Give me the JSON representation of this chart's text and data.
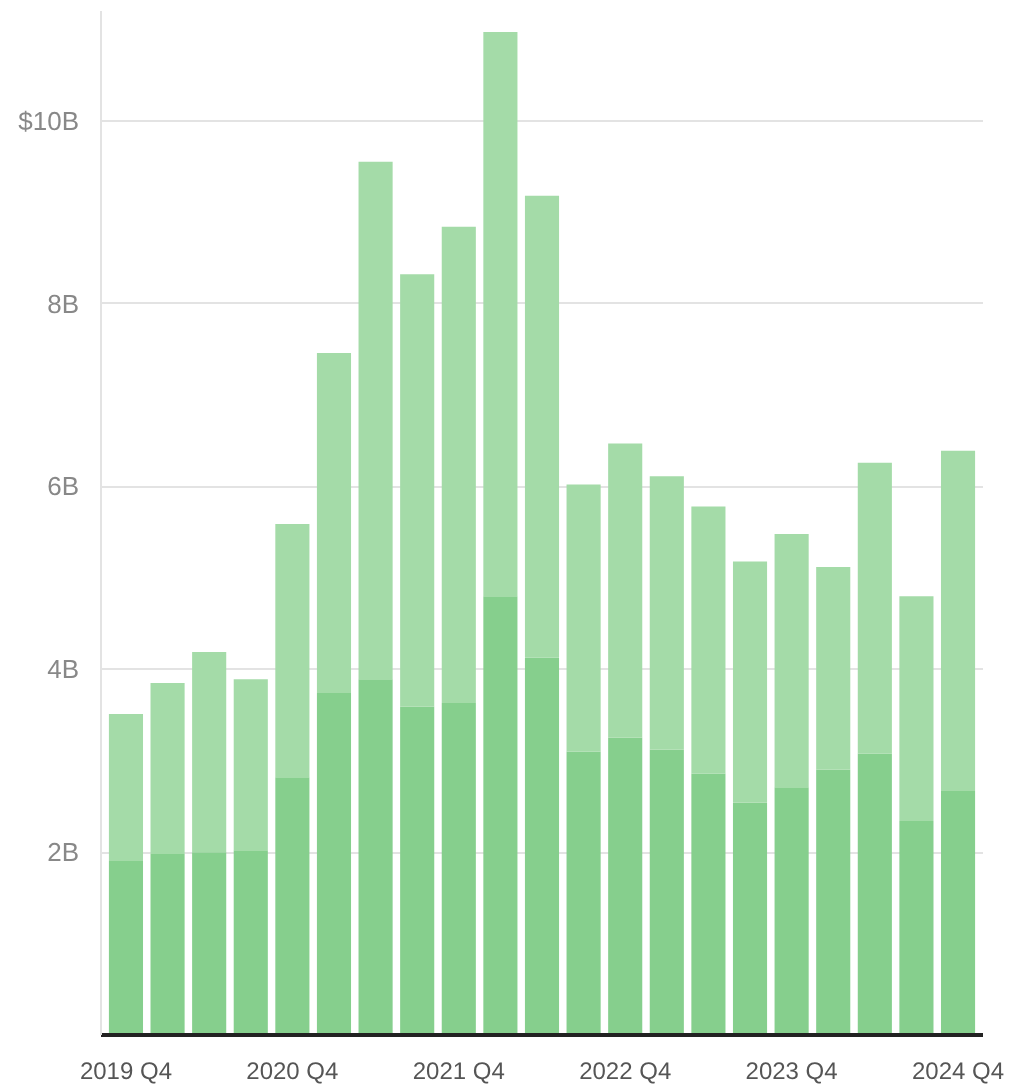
{
  "chart_data": {
    "type": "bar",
    "stacked": true,
    "categories": [
      "2019 Q4",
      null,
      null,
      null,
      "2020 Q4",
      null,
      null,
      null,
      "2021 Q4",
      null,
      null,
      null,
      "2022 Q4",
      null,
      null,
      null,
      "2023 Q4",
      null,
      null,
      null,
      "2024 Q4"
    ],
    "series": [
      {
        "color": "#86cf8d",
        "values": [
          1.91,
          1.98,
          2.0,
          2.02,
          2.82,
          3.74,
          3.89,
          3.59,
          3.63,
          4.8,
          4.13,
          3.1,
          3.25,
          3.12,
          2.86,
          2.54,
          2.71,
          2.9,
          3.08,
          2.34,
          2.67
        ]
      },
      {
        "color": "#a4dba8",
        "values": [
          1.6,
          1.87,
          2.19,
          1.87,
          2.77,
          3.72,
          5.66,
          4.73,
          5.21,
          6.17,
          5.05,
          2.92,
          3.22,
          2.99,
          2.92,
          2.64,
          2.77,
          2.22,
          3.18,
          2.46,
          3.72
        ]
      }
    ],
    "ylim": [
      0,
      11.2
    ],
    "yticks": [
      {
        "value": 2,
        "label": "2B"
      },
      {
        "value": 4,
        "label": "4B"
      },
      {
        "value": 6,
        "label": "6B"
      },
      {
        "value": 8,
        "label": "8B"
      },
      {
        "value": 10,
        "label": "$10B"
      }
    ],
    "grid": "y"
  }
}
